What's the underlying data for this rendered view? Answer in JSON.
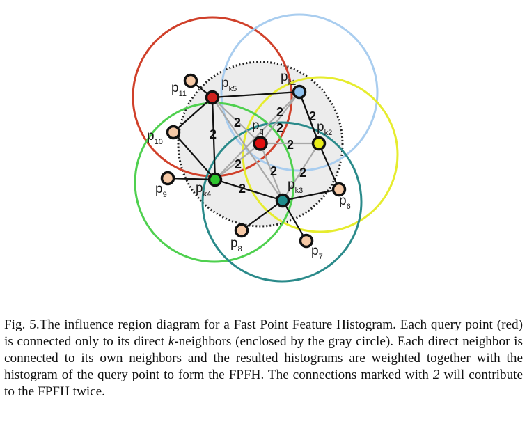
{
  "figure": {
    "points": [
      {
        "name": "p-q",
        "base": "p",
        "sub": "q",
        "color": "#e01010"
      },
      {
        "name": "p-k1",
        "base": "p",
        "sub": "k1",
        "color": "#8fc1ee"
      },
      {
        "name": "p-k2",
        "base": "p",
        "sub": "k2",
        "color": "#e8ec1a"
      },
      {
        "name": "p-k3",
        "base": "p",
        "sub": "k3",
        "color": "#1f8c8c"
      },
      {
        "name": "p-k4",
        "base": "p",
        "sub": "k4",
        "color": "#2ec62e"
      },
      {
        "name": "p-k5",
        "base": "p",
        "sub": "k5",
        "color": "#d0231f"
      },
      {
        "name": "p-6",
        "base": "p",
        "sub": "6",
        "color": "#f6c9a6"
      },
      {
        "name": "p-7",
        "base": "p",
        "sub": "7",
        "color": "#f6c9a6"
      },
      {
        "name": "p-8",
        "base": "p",
        "sub": "8",
        "color": "#f6c9a6"
      },
      {
        "name": "p-9",
        "base": "p",
        "sub": "9",
        "color": "#f6c9a6"
      },
      {
        "name": "p-10",
        "base": "p",
        "sub": "10",
        "color": "#f6c9a6"
      },
      {
        "name": "p-11",
        "base": "p",
        "sub": "11",
        "color": "#f6c9a6"
      }
    ],
    "double_mark": "2",
    "circle_colors": {
      "k5": "#d0402a",
      "k1": "#a9cdef",
      "k2": "#e6ec2e",
      "k4": "#4fd04f",
      "k3": "#2a8a8a",
      "influence_fill": "#ececec"
    }
  },
  "caption": {
    "label": "Fig. 5.",
    "text_1": "The influence region diagram for a Fast Point Feature Histogram. Each query point (red) is connected only to its direct ",
    "k": "k",
    "text_2": "-neighbors (enclosed by the gray circle). Each direct neighbor is connected to its own neighbors and the resulted histograms are weighted together with the histogram of the query point to form the FPFH. The connections marked with ",
    "two": "2",
    "text_3": " will contribute to the FPFH twice."
  }
}
